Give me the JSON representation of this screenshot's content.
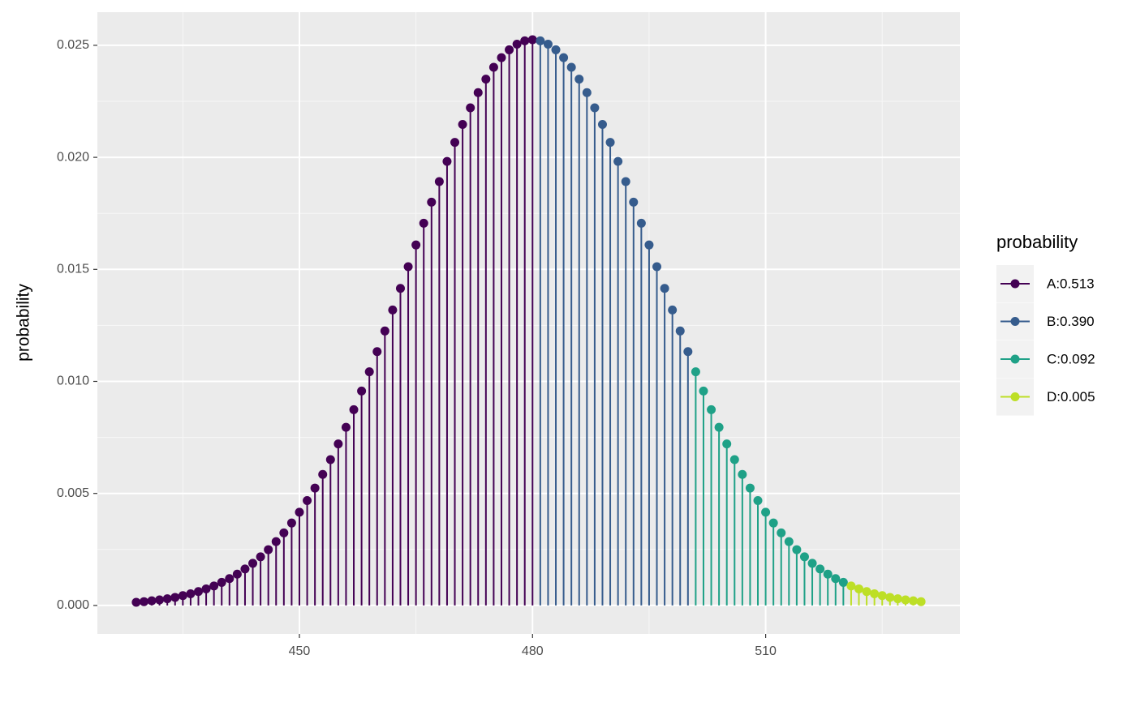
{
  "chart_data": {
    "type": "lollipop",
    "ylabel": "probability",
    "legend_title": "probability",
    "legend": "right",
    "grid": true,
    "xlim": [
      424,
      535
    ],
    "xticks": [
      450,
      480,
      510
    ],
    "ylim": [
      -0.00127,
      0.02648
    ],
    "yticks": [
      {
        "value": 0,
        "label": "0.000"
      },
      {
        "value": 0.005,
        "label": "0.005"
      },
      {
        "value": 0.01,
        "label": "0.010"
      },
      {
        "value": 0.015,
        "label": "0.015"
      },
      {
        "value": 0.02,
        "label": "0.020"
      },
      {
        "value": 0.025,
        "label": "0.025"
      }
    ],
    "series": [
      {
        "name": "A:0.513",
        "color": "#440154",
        "x": [
          429,
          430,
          431,
          432,
          433,
          434,
          435,
          436,
          437,
          438,
          439,
          440,
          441,
          442,
          443,
          444,
          445,
          446,
          447,
          448,
          449,
          450,
          451,
          452,
          453,
          454,
          455,
          456,
          457,
          458,
          459,
          460,
          461,
          462,
          463,
          464,
          465,
          466,
          467,
          468,
          469,
          470,
          471,
          472,
          473,
          474,
          475,
          476,
          477,
          478,
          479,
          480
        ],
        "values": [
          0.00014,
          0.00017,
          0.00021,
          0.00025,
          0.0003,
          0.00036,
          0.00044,
          0.00052,
          0.00062,
          0.00074,
          0.00087,
          0.00103,
          0.0012,
          0.0014,
          0.00163,
          0.00188,
          0.00217,
          0.00249,
          0.00285,
          0.00324,
          0.00368,
          0.00416,
          0.00468,
          0.00524,
          0.00585,
          0.00651,
          0.00721,
          0.00795,
          0.00874,
          0.00957,
          0.01043,
          0.01133,
          0.01225,
          0.01319,
          0.01415,
          0.01512,
          0.01609,
          0.01706,
          0.018,
          0.01892,
          0.01982,
          0.02067,
          0.02147,
          0.02221,
          0.02289,
          0.02349,
          0.02402,
          0.02445,
          0.0248,
          0.02505,
          0.0252,
          0.02525
        ]
      },
      {
        "name": "B:0.390",
        "color": "#365c8d",
        "x": [
          481,
          482,
          483,
          484,
          485,
          486,
          487,
          488,
          489,
          490,
          491,
          492,
          493,
          494,
          495,
          496,
          497,
          498,
          499,
          500
        ],
        "values": [
          0.0252,
          0.02505,
          0.0248,
          0.02445,
          0.02402,
          0.02349,
          0.02289,
          0.02221,
          0.02147,
          0.02067,
          0.01982,
          0.01892,
          0.018,
          0.01706,
          0.01609,
          0.01512,
          0.01415,
          0.01319,
          0.01225,
          0.01133
        ]
      },
      {
        "name": "C:0.092",
        "color": "#1fa187",
        "x": [
          501,
          502,
          503,
          504,
          505,
          506,
          507,
          508,
          509,
          510,
          511,
          512,
          513,
          514,
          515,
          516,
          517,
          518,
          519,
          520
        ],
        "values": [
          0.01043,
          0.00957,
          0.00874,
          0.00795,
          0.00721,
          0.00651,
          0.00585,
          0.00524,
          0.00468,
          0.00416,
          0.00368,
          0.00324,
          0.00285,
          0.00249,
          0.00217,
          0.00188,
          0.00163,
          0.0014,
          0.0012,
          0.00103
        ]
      },
      {
        "name": "D:0.005",
        "color": "#bddf26",
        "x": [
          521,
          522,
          523,
          524,
          525,
          526,
          527,
          528,
          529,
          530
        ],
        "values": [
          0.00087,
          0.00074,
          0.00062,
          0.00052,
          0.00044,
          0.00036,
          0.0003,
          0.00025,
          0.00021,
          0.00017
        ]
      }
    ]
  }
}
